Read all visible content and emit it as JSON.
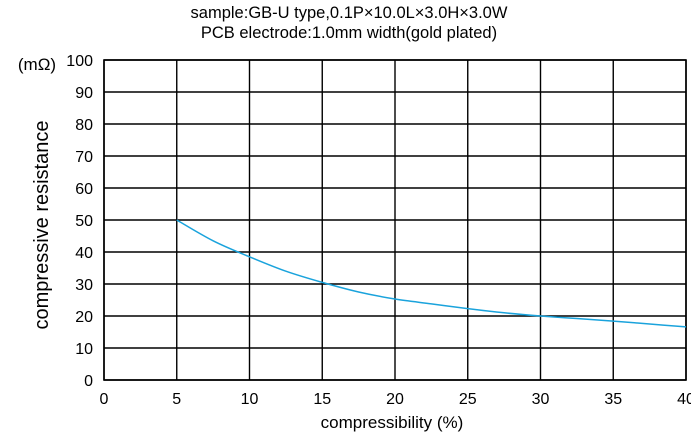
{
  "chart_data": {
    "type": "line",
    "title": "sample:GB-U type,0.1P×10.0L×3.0H×3.0W",
    "subtitle": "PCB electrode:1.0mm width(gold plated)",
    "xlabel": "compressibility (%)",
    "ylabel": "compressive resistance",
    "yunit": "(mΩ)",
    "xlim": [
      0,
      40
    ],
    "ylim": [
      0,
      100
    ],
    "xticks": [
      "0",
      "5",
      "10",
      "15",
      "20",
      "25",
      "30",
      "35",
      "40"
    ],
    "yticks": [
      "0",
      "10",
      "20",
      "30",
      "40",
      "50",
      "60",
      "70",
      "80",
      "90",
      "100"
    ],
    "grid": true,
    "legend": "none",
    "series": [
      {
        "color": "#1aa3dc",
        "x": [
          5,
          7.5,
          10,
          12.5,
          15,
          17.5,
          20,
          22.5,
          25,
          27.5,
          30,
          32.5,
          35,
          37.5,
          40
        ],
        "y": [
          50,
          43.5,
          38.5,
          34,
          30.5,
          27.5,
          25.3,
          23.8,
          22.3,
          21,
          20,
          19.2,
          18.4,
          17.5,
          16.6
        ]
      }
    ]
  }
}
